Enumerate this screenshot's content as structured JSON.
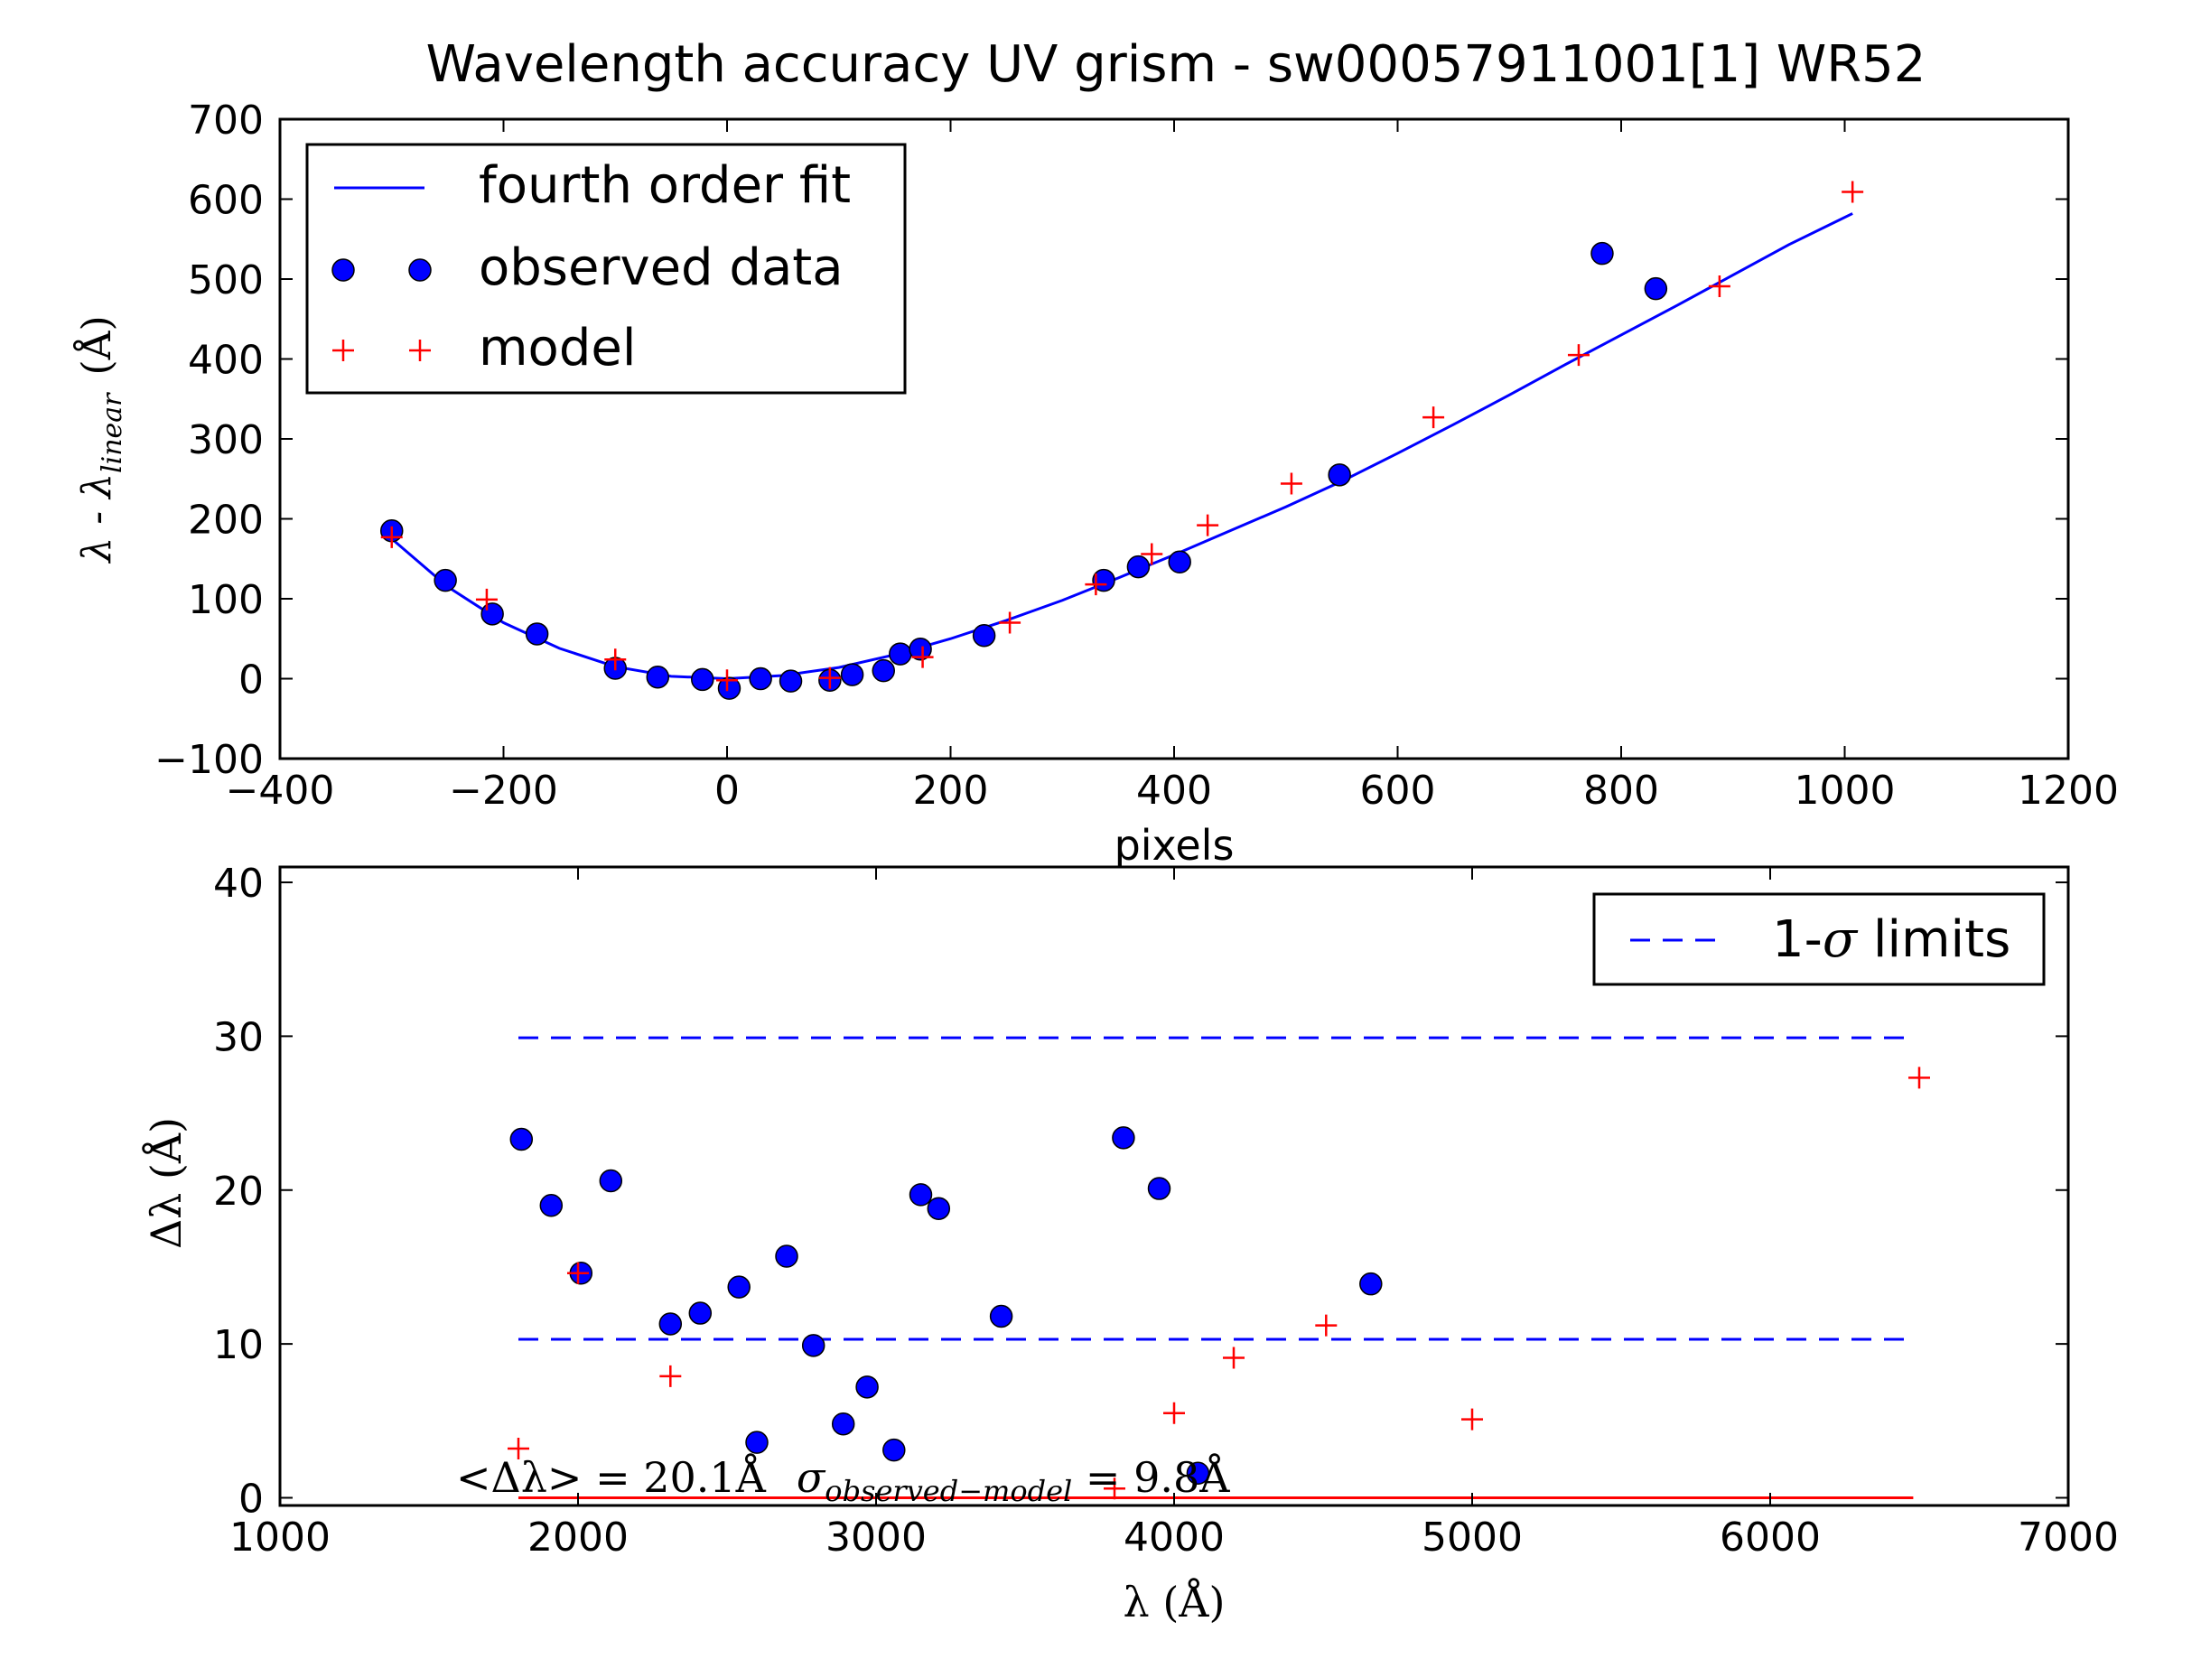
{
  "title": "Wavelength accuracy UV grism - sw00057911001[1] WR52",
  "colors": {
    "fit": "#0000ff",
    "observed": "#0000ff",
    "model": "#ff0000",
    "limits": "#0000ff",
    "baseline": "#ff0000"
  },
  "chart_data": [
    {
      "type": "scatter",
      "xlabel": "pixels",
      "ylabel": {
        "main": "λ - λ",
        "sub": "linear",
        "unit": "(Å)"
      },
      "xlim": [
        -400,
        1200
      ],
      "ylim": [
        -100,
        700
      ],
      "xticks": [
        -400,
        -200,
        0,
        200,
        400,
        600,
        800,
        1000,
        1200
      ],
      "yticks": [
        -100,
        0,
        100,
        200,
        300,
        400,
        500,
        600,
        700
      ],
      "xtick_labels": [
        "−400",
        "−200",
        "0",
        "200",
        "400",
        "600",
        "800",
        "1000",
        "1200"
      ],
      "ytick_labels": [
        "−100",
        "0",
        "100",
        "200",
        "300",
        "400",
        "500",
        "600",
        "700"
      ],
      "grid": false,
      "legend": {
        "position": "top-left",
        "entries": [
          {
            "label": "fourth order fit",
            "marker": "line"
          },
          {
            "label": "observed data",
            "marker": "circle"
          },
          {
            "label": "model",
            "marker": "plus"
          }
        ]
      },
      "series": [
        {
          "name": "fourth order fit",
          "kind": "line",
          "x": [
            -300,
            -250,
            -200,
            -150,
            -100,
            -50,
            0,
            50,
            100,
            150,
            200,
            250,
            300,
            350,
            400,
            450,
            500,
            550,
            600,
            650,
            700,
            750,
            800,
            850,
            900,
            950,
            1007
          ],
          "y": [
            175,
            115,
            70,
            38,
            15,
            3,
            0,
            4,
            14,
            30,
            50,
            73,
            98,
            126,
            155,
            185,
            215,
            247,
            282,
            318,
            355,
            393,
            430,
            467,
            505,
            543,
            582
          ]
        },
        {
          "name": "observed data",
          "kind": "circle",
          "x": [
            -300,
            -252,
            -210,
            -170,
            -100,
            -62,
            -22,
            2,
            30,
            57,
            92,
            112,
            140,
            155,
            173,
            230,
            337,
            368,
            405,
            548,
            783,
            831
          ],
          "y": [
            185,
            123,
            81,
            56,
            13,
            2,
            -1,
            -12,
            0,
            -3,
            -2,
            5,
            10,
            31,
            37,
            54,
            123,
            140,
            146,
            255,
            532,
            488
          ]
        },
        {
          "name": "model",
          "kind": "plus",
          "x": [
            -300,
            -215,
            -100,
            0,
            92,
            175,
            253,
            330,
            380,
            430,
            505,
            632,
            762,
            888,
            1007
          ],
          "y": [
            177,
            99,
            24,
            -2,
            1,
            27,
            70,
            118,
            156,
            192,
            244,
            327,
            405,
            491,
            609
          ]
        }
      ]
    },
    {
      "type": "scatter",
      "xlabel": "λ (Å)",
      "ylabel": "Δλ (Å)",
      "xlim": [
        1000,
        7000
      ],
      "ylim": [
        -0.5,
        41
      ],
      "xticks": [
        1000,
        2000,
        3000,
        4000,
        5000,
        6000,
        7000
      ],
      "yticks": [
        0,
        10,
        20,
        30,
        40
      ],
      "xtick_labels": [
        "1000",
        "2000",
        "3000",
        "4000",
        "5000",
        "6000",
        "7000"
      ],
      "ytick_labels": [
        "0",
        "10",
        "20",
        "30",
        "40"
      ],
      "grid": false,
      "legend": {
        "position": "top-right",
        "entries": [
          {
            "label_prefix": "1-",
            "label_sigma": "σ",
            "label_suffix": " limits",
            "marker": "dashed"
          }
        ]
      },
      "annotation": {
        "mean_prefix": "<Δλ> = 20.1Å",
        "sigma_symbol": "σ",
        "sigma_sub": "observed−model",
        "sigma_value": " = 9.8Å"
      },
      "series": [
        {
          "name": "upper 1-σ limit",
          "kind": "dashed",
          "x": [
            1800,
            6480
          ],
          "y": [
            29.9,
            29.9
          ]
        },
        {
          "name": "lower 1-σ limit",
          "kind": "dashed",
          "x": [
            1800,
            6480
          ],
          "y": [
            10.3,
            10.3
          ]
        },
        {
          "name": "baseline",
          "kind": "solid",
          "x": [
            1800,
            6480
          ],
          "y": [
            0,
            0
          ]
        },
        {
          "name": "observed data",
          "kind": "circle",
          "x": [
            1810,
            1910,
            2010,
            2110,
            2310,
            2410,
            2540,
            2600,
            2700,
            2790,
            2890,
            2970,
            3060,
            3150,
            3210,
            3420,
            3830,
            3950,
            4080,
            4660
          ],
          "y": [
            23.3,
            19.0,
            14.6,
            20.6,
            11.3,
            12.0,
            13.7,
            3.6,
            15.7,
            9.9,
            4.8,
            7.2,
            3.1,
            19.7,
            18.8,
            11.8,
            23.4,
            20.1,
            1.6,
            13.9
          ]
        },
        {
          "name": "model",
          "kind": "plus",
          "x": [
            1800,
            2000,
            2310,
            3800,
            4000,
            4200,
            4510,
            5000,
            6500
          ],
          "y": [
            3.2,
            14.6,
            7.9,
            0.6,
            5.5,
            9.1,
            11.2,
            5.1,
            27.3
          ]
        }
      ]
    }
  ]
}
